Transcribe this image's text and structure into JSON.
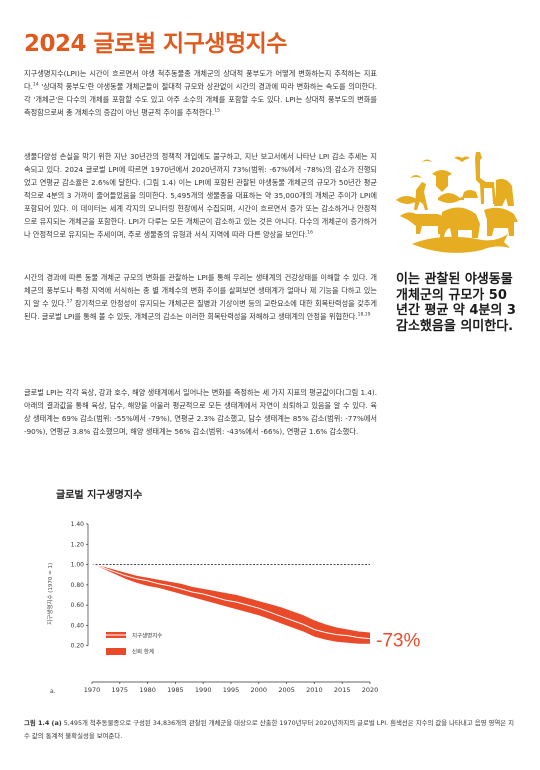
{
  "page_title": "2024 글로벌 지구생명지수",
  "paragraphs": {
    "p1_a": "지구생명지수(LPI)는 시간이 흐르면서 야생 척추동물종 개체군의 상대적 풍부도가 어떻게 변화하는지 추적하는 지표다.",
    "p1_sup1": "14",
    "p1_b": " '상대적 풍부도'란 야생동물 개체군들이 절대적 규모와 상관없이 시간의 경과에 따라 변화하는 속도를 의미한다. 각 '개체군'은 다수의 개체를 포함할 수도 있고 아주 소수의 개체를 포함할 수도 있다. LPI는 상대적 풍부도의 변화를 측정함으로써 총 개체수의 증감이 아닌 평균적 추이를 추적한다.",
    "p1_sup2": "15",
    "p2": "생물다양성 손실을 막기 위한 지난 30년간의 정책적 개입에도 불구하고, 지난 보고서에서 나타난 LPI 감소 추세는 지속되고 있다. 2024 글로벌 LPI에 따르면 1970년에서 2020년까지 73%(범위: -67%에서 -78%)의 감소가 진행되었고 연평균 감소율은 2.6%에 달한다. (그림 1.4) 이는 LPI에 포함된 관찰된 야생동물 개체군의 규모가 50년간 평균적으로 4분의 3 가까이 줄어들었음을 의미한다. 5,495개의 생물종을 대표하는 약 35,000개의 개체군 추이가 LPI에 포함되어 있다. 이 데이터는 세계 각지의 모니터링 현장에서 수집되며, 시간이 흐르면서 증가 또는 감소하거나 안정적으로 유지되는 개체군을 포함한다. LPI가 다루는 모든 개체군이 감소하고 있는 것은 아니다. 다수의 개체군이 증가하거나 안정적으로 유지되는 추세이며, 주로 생물종의 유형과 서식 지역에 따라 다른 양상을 보인다.",
    "p2_sup": "16",
    "p3_a": "시간의 경과에 따른 동물 개체군 규모의 변화를 관찰하는 LPI를 통해 우리는 생태계의 건강상태를 이해할 수 있다. 개체군의 풍부도나 특정 지역에 서식하는 종 별 개체수의 변화 추이를 살펴보면 생태계가 얼마나 제 기능을 다하고 있는지 알 수 있다.",
    "p3_sup1": "17",
    "p3_b": " 장기적으로 안정성이 유지되는 개체군은 질병과 기상이변 등의 교란요소에 대한 회복탄력성을 갖추게 된다. 글로벌 LPI를 통해 볼 수 있듯, 개체군의 감소는 이러한 회복탄력성을 저해하고 생태계의 안정을 위협한다.",
    "p3_sup2": "18,19",
    "p4": "글로벌 LPI는 각각 육상, 강과 호수, 해양 생태계에서 일어나는 변화를 측정하는 세 가지 지표의 평균값이다(그림 1.4). 아래의 결과값을 통해 육상, 담수, 해양을 아울러 평균적으로 모든 생태계에서 자연이 쇠퇴하고 있음을 알 수 있다. 육상 생태계는 69% 감소(범위: -55%에서 -79%), 연평균 2.3% 감소했고, 담수 생태계는 85% 감소(범위: -77%에서 -90%), 연평균 3.8% 감소했으며, 해양 생태계는 56% 감소(범위: -43%에서 -66%), 연평균 1.6% 감소했다."
  },
  "pull_quote": "이는 관찰된 야생동물 개체군의 규모가 50년간 평균 약 4분의 3 감소했음을 의미한다.",
  "chart_title": "글로벌 지구생명지수",
  "chart_data": {
    "type": "line",
    "ylabel": "지구생명지수 (1970 = 1)",
    "y_ticks": [
      "1.40",
      "1.20",
      "1.00",
      "0.80",
      "0.60",
      "0.40",
      "0.20"
    ],
    "x_ticks": [
      "1970",
      "1975",
      "1980",
      "1985",
      "1990",
      "1995",
      "2000",
      "2005",
      "2010",
      "2015",
      "2020"
    ],
    "x": [
      1970,
      1972,
      1974,
      1976,
      1978,
      1980,
      1982,
      1984,
      1986,
      1988,
      1990,
      1992,
      1994,
      1996,
      1998,
      2000,
      2002,
      2004,
      2006,
      2008,
      2010,
      2012,
      2014,
      2016,
      2018,
      2020
    ],
    "series": [
      {
        "name": "지구생명지수",
        "values": [
          1.0,
          0.97,
          0.93,
          0.89,
          0.86,
          0.84,
          0.81,
          0.79,
          0.76,
          0.73,
          0.71,
          0.68,
          0.65,
          0.63,
          0.6,
          0.57,
          0.53,
          0.49,
          0.45,
          0.41,
          0.36,
          0.33,
          0.31,
          0.3,
          0.28,
          0.27
        ]
      },
      {
        "name": "신뢰 한계",
        "upper": [
          1.0,
          0.98,
          0.95,
          0.92,
          0.89,
          0.87,
          0.85,
          0.83,
          0.81,
          0.78,
          0.76,
          0.74,
          0.72,
          0.7,
          0.67,
          0.64,
          0.61,
          0.58,
          0.54,
          0.5,
          0.45,
          0.41,
          0.38,
          0.36,
          0.34,
          0.33
        ],
        "lower": [
          1.0,
          0.96,
          0.91,
          0.86,
          0.82,
          0.79,
          0.77,
          0.74,
          0.71,
          0.68,
          0.65,
          0.62,
          0.59,
          0.56,
          0.53,
          0.5,
          0.46,
          0.42,
          0.38,
          0.34,
          0.29,
          0.26,
          0.24,
          0.23,
          0.22,
          0.22
        ]
      }
    ],
    "ylim": [
      0,
      1.4
    ],
    "xlim": [
      1970,
      2020
    ],
    "annotation": "-73%",
    "panel_label": "a.",
    "colors": {
      "line": "#ffffff",
      "band": "#e84a2a",
      "ref": "#333333",
      "annotation": "#e84a2a"
    }
  },
  "caption": {
    "label": "그림 1.4 (a)",
    "text": " 5,495개 척추동물종으로 구성된 34,836개의 관찰된 개체군을 대상으로 산출한 1970년부터 2020년까지의 글로벌 LPI. 흰색선은 지수의 값을 나타내고 음영 영역은 지수 값의 통계적 불확실성을 보여준다."
  },
  "animals_color": "#e7ad22"
}
